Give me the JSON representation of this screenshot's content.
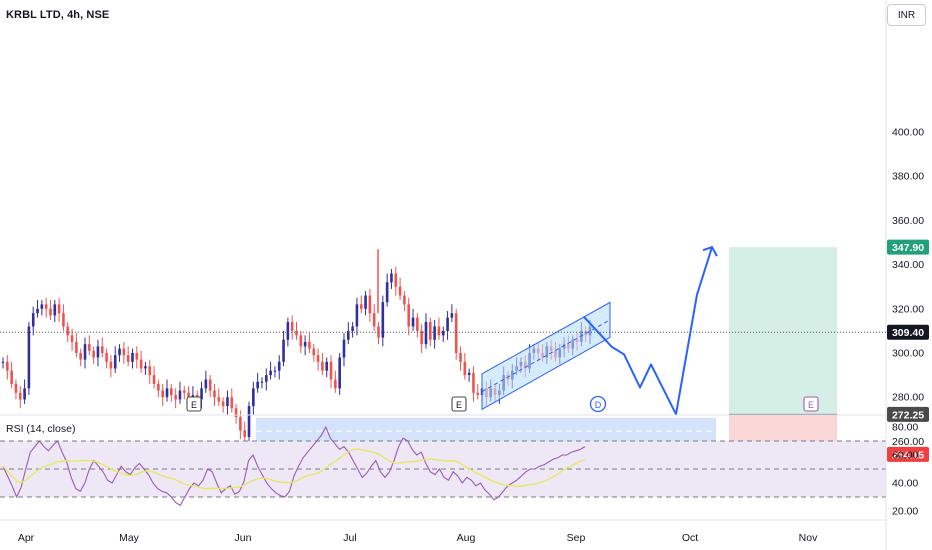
{
  "header": {
    "symbol": "KRBL LTD, 4h, NSE",
    "currency": "INR"
  },
  "rsi": {
    "label": "RSI (14, close)",
    "levels": [
      70,
      50,
      30
    ],
    "ticks": [
      "80.00",
      "60.00",
      "40.00",
      "20.00"
    ],
    "values": [
      52,
      45,
      38,
      30,
      37,
      50,
      62,
      66,
      70,
      66,
      63,
      67,
      70,
      62,
      55,
      44,
      36,
      34,
      40,
      50,
      56,
      52,
      48,
      42,
      40,
      46,
      52,
      48,
      46,
      51,
      54,
      50,
      46,
      40,
      36,
      34,
      33,
      30,
      26,
      24,
      30,
      36,
      40,
      38,
      42,
      50,
      48,
      40,
      33,
      36,
      38,
      32,
      34,
      41,
      56,
      60,
      52,
      46,
      40,
      36,
      33,
      31,
      30,
      34,
      45,
      52,
      58,
      62,
      66,
      70,
      74,
      80,
      72,
      68,
      64,
      66,
      62,
      56,
      50,
      44,
      47,
      52,
      56,
      48,
      44,
      48,
      56,
      66,
      72,
      70,
      64,
      60,
      62,
      54,
      48,
      46,
      50,
      44,
      42,
      48,
      45,
      40,
      44,
      42,
      38,
      40,
      35,
      32,
      28,
      30,
      34,
      38,
      40,
      42,
      45,
      48,
      50,
      50,
      52,
      53,
      55,
      57,
      58,
      60,
      60,
      62,
      63,
      64,
      66
    ]
  },
  "chart_data": {
    "type": "candlestick",
    "title": "KRBL LTD, 4h, NSE",
    "currency": "INR",
    "x_labels": [
      "Apr",
      "May",
      "Jun",
      "Jul",
      "Aug",
      "Sep",
      "Oct",
      "Nov"
    ],
    "y_ticks": [
      "400.00",
      "380.00",
      "360.00",
      "340.00",
      "320.00",
      "300.00",
      "280.00",
      "260.00"
    ],
    "ylim": [
      250,
      415
    ],
    "price_labels": {
      "target": "347.90",
      "last": "309.40",
      "entry": "272.25",
      "stop": "254.15"
    },
    "colors": {
      "up": "#2f2f9e",
      "down": "#ef5350",
      "profit_zone": "#d5efe6",
      "loss_zone": "#fbd6d6",
      "support_zone": "#c9dcf9",
      "projection": "#2962ff",
      "rsi_line": "#9c5bb5",
      "rsi_ma": "#e8e85a",
      "rsi_band": "#ede7f6",
      "target_badge": "#22a07b",
      "last_badge": "#131722",
      "entry_badge": "#4a4a4a",
      "stop_badge": "#ef3f3f"
    },
    "price_path": [
      296,
      292,
      286,
      282,
      279,
      284,
      312,
      318,
      320,
      322,
      320,
      317,
      322,
      318,
      312,
      308,
      305,
      300,
      297,
      304,
      301,
      298,
      303,
      300,
      296,
      293,
      299,
      302,
      299,
      296,
      300,
      297,
      293,
      294,
      290,
      286,
      283,
      280,
      284,
      281,
      279,
      283,
      282,
      279,
      281,
      279,
      284,
      288,
      283,
      280,
      278,
      276,
      280,
      275,
      271,
      265,
      262,
      276,
      284,
      287,
      287,
      290,
      292,
      292,
      296,
      306,
      314,
      310,
      308,
      303,
      305,
      302,
      299,
      296,
      292,
      296,
      288,
      284,
      298,
      306,
      310,
      312,
      322,
      320,
      326,
      318,
      312,
      307,
      323,
      332,
      336,
      330,
      326,
      322,
      312,
      316,
      310,
      304,
      314,
      306,
      312,
      308,
      310,
      316,
      318,
      300,
      296,
      290,
      291,
      282,
      281,
      284,
      280,
      284,
      281,
      283,
      290,
      288,
      292,
      294,
      296,
      293,
      300,
      302,
      300,
      298,
      303,
      301,
      298,
      302,
      304,
      302,
      306,
      305,
      310,
      308,
      312
    ],
    "projection_path": [
      [
        316.3,
        314
      ],
      [
        302.7,
        299
      ],
      [
        299.4,
        308
      ],
      [
        284.4,
        289
      ],
      [
        294.8,
        302
      ],
      [
        272.3,
        270
      ],
      [
        326.4,
        335
      ],
      [
        347.9,
        350
      ]
    ],
    "zones": {
      "support": [
        258.6,
        270.7
      ],
      "profit": [
        272.25,
        347.9
      ],
      "loss": [
        254.15,
        272.25
      ]
    },
    "channel": {
      "lower_start": [
        274.5,
        282
      ],
      "lower_end": [
        307.1,
        316
      ],
      "upper_start": [
        290.6,
        282
      ],
      "upper_end": [
        322.9,
        316
      ]
    },
    "event_markers": [
      {
        "label": "E",
        "style": "earnings"
      },
      {
        "label": "E",
        "style": "earnings"
      },
      {
        "label": "D",
        "style": "dividend"
      },
      {
        "label": "E",
        "style": "upcoming"
      }
    ]
  }
}
